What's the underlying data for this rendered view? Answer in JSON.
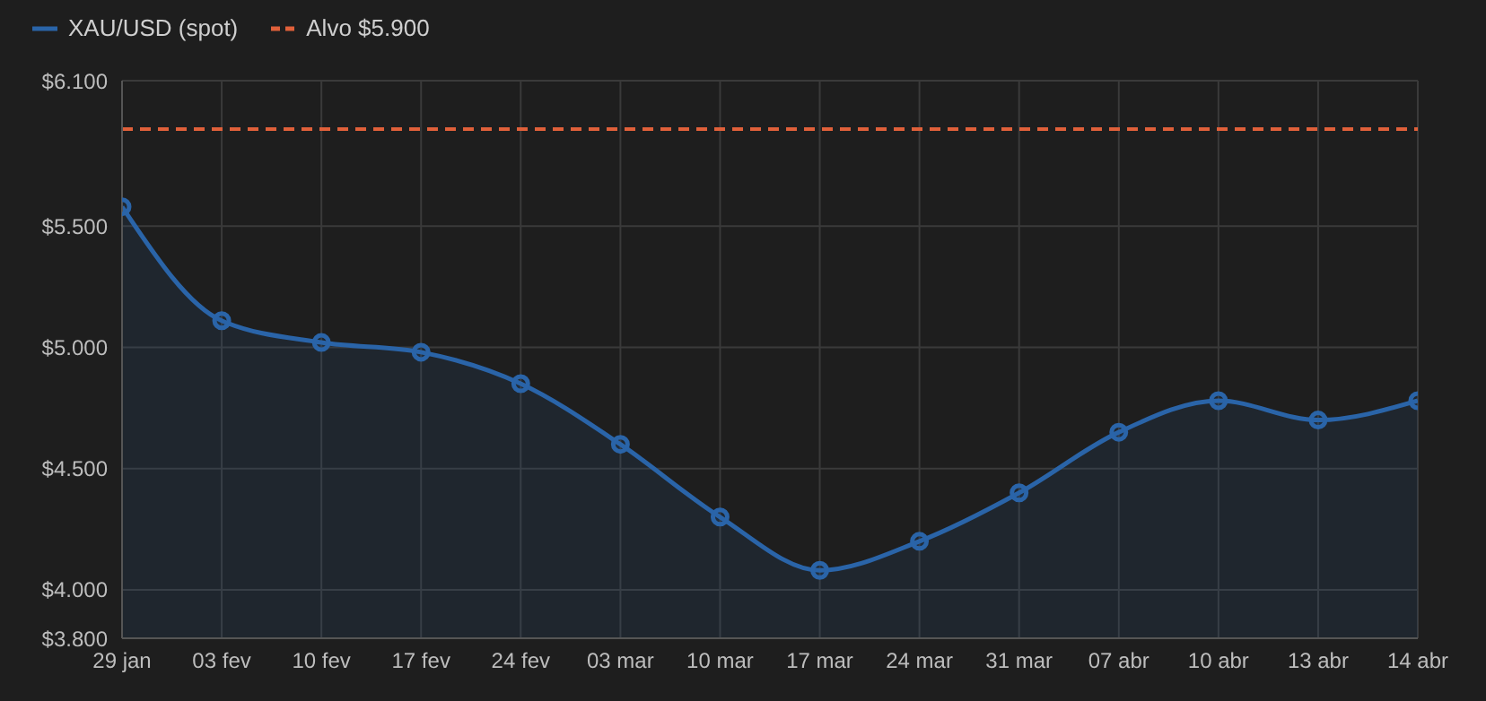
{
  "chart_data": {
    "type": "area",
    "categories": [
      "29 jan",
      "03 fev",
      "10 fev",
      "17 fev",
      "24 fev",
      "03 mar",
      "10 mar",
      "17 mar",
      "24 mar",
      "31 mar",
      "07 abr",
      "10 abr",
      "13 abr",
      "14 abr"
    ],
    "series": [
      {
        "name": "XAU/USD (spot)",
        "color": "#2a64a8",
        "values": [
          5580,
          5110,
          5020,
          4980,
          4850,
          4600,
          4300,
          4080,
          4200,
          4400,
          4650,
          4780,
          4700,
          4780
        ]
      }
    ],
    "ylim": [
      3800,
      6100
    ],
    "yticks": [
      {
        "value": 3800,
        "label": "$3.800"
      },
      {
        "value": 4000,
        "label": "$4.000"
      },
      {
        "value": 4500,
        "label": "$4.500"
      },
      {
        "value": 5000,
        "label": "$5.000"
      },
      {
        "value": 5500,
        "label": "$5.500"
      },
      {
        "value": 6100,
        "label": "$6.100"
      }
    ],
    "ref_lines": [
      {
        "axis": "y",
        "value": 5900,
        "label": "Alvo $5.900",
        "color": "#e0603a",
        "line_style": "dashed"
      }
    ],
    "grid": true,
    "legend": "top left",
    "marker": "circle",
    "line_style": "solid"
  }
}
